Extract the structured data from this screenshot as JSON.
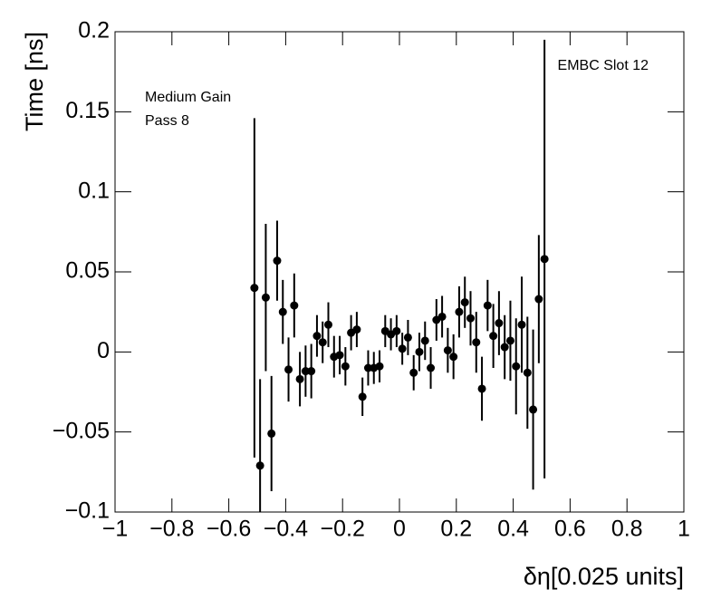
{
  "chart_data": {
    "type": "errorbar",
    "annotations": [
      "Medium Gain",
      "Pass 8",
      "EMBC Slot 12"
    ],
    "xlabel": "δη[0.025 units]",
    "ylabel": "Time [ns]",
    "xlim": [
      -1,
      1
    ],
    "ylim": [
      -0.1,
      0.2
    ],
    "xticks": [
      {
        "value": -1,
        "label": "−1"
      },
      {
        "value": -0.8,
        "label": "−0.8"
      },
      {
        "value": -0.6,
        "label": "−0.6"
      },
      {
        "value": -0.4,
        "label": "−0.4"
      },
      {
        "value": -0.2,
        "label": "−0.2"
      },
      0,
      0.2,
      0.4,
      0.6,
      0.8,
      1
    ],
    "yticks": [
      {
        "value": -0.1,
        "label": "−0.1"
      },
      {
        "value": -0.05,
        "label": "−0.05"
      },
      0,
      0.05,
      0.1,
      0.15,
      0.2
    ],
    "color": "#000000",
    "x": [
      -0.51,
      -0.49,
      -0.47,
      -0.45,
      -0.43,
      -0.41,
      -0.39,
      -0.37,
      -0.35,
      -0.33,
      -0.31,
      -0.29,
      -0.27,
      -0.25,
      -0.23,
      -0.21,
      -0.19,
      -0.17,
      -0.15,
      -0.13,
      -0.11,
      -0.09,
      -0.07,
      -0.05,
      -0.03,
      -0.01,
      0.01,
      0.03,
      0.05,
      0.07,
      0.09,
      0.11,
      0.13,
      0.15,
      0.17,
      0.19,
      0.21,
      0.23,
      0.25,
      0.27,
      0.29,
      0.31,
      0.33,
      0.35,
      0.37,
      0.39,
      0.41,
      0.43,
      0.45,
      0.47,
      0.49,
      0.51
    ],
    "values": [
      0.04,
      -0.071,
      0.034,
      -0.051,
      0.057,
      0.025,
      -0.011,
      0.029,
      -0.017,
      -0.012,
      -0.012,
      0.01,
      0.006,
      0.017,
      -0.003,
      -0.002,
      -0.009,
      0.012,
      0.014,
      -0.028,
      -0.01,
      -0.01,
      -0.009,
      0.013,
      0.011,
      0.013,
      0.002,
      0.009,
      -0.013,
      0.0,
      0.007,
      -0.01,
      0.02,
      0.022,
      0.001,
      -0.003,
      0.025,
      0.031,
      0.021,
      0.006,
      -0.023,
      0.029,
      0.01,
      0.018,
      0.003,
      0.007,
      -0.009,
      0.017,
      -0.013,
      -0.036,
      0.033,
      0.058
    ],
    "errors": [
      0.106,
      0.054,
      0.046,
      0.036,
      0.025,
      0.02,
      0.02,
      0.02,
      0.017,
      0.016,
      0.017,
      0.013,
      0.013,
      0.014,
      0.013,
      0.012,
      0.012,
      0.011,
      0.011,
      0.012,
      0.011,
      0.01,
      0.01,
      0.01,
      0.01,
      0.01,
      0.01,
      0.011,
      0.011,
      0.012,
      0.012,
      0.013,
      0.013,
      0.013,
      0.014,
      0.014,
      0.016,
      0.016,
      0.017,
      0.019,
      0.02,
      0.016,
      0.02,
      0.02,
      0.02,
      0.025,
      0.03,
      0.03,
      0.035,
      0.05,
      0.04,
      0.137
    ]
  }
}
